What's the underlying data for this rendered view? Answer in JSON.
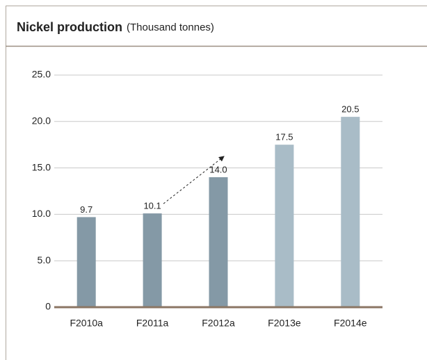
{
  "chart_data": {
    "type": "bar",
    "title": "Nickel production",
    "subtitle": "(Thousand tonnes)",
    "categories": [
      "F2010a",
      "F2011a",
      "F2012a",
      "F2013e",
      "F2014e"
    ],
    "values": [
      9.7,
      10.1,
      14.0,
      17.5,
      20.5
    ],
    "value_labels": [
      "9.7",
      "10.1",
      "14.0",
      "17.5",
      "20.5"
    ],
    "colors": [
      "#8499a6",
      "#8499a6",
      "#8499a6",
      "#a9bcc7",
      "#a9bcc7"
    ],
    "ylim": [
      0,
      25
    ],
    "yticks": [
      0,
      {
        "value": 5,
        "label": "5.0"
      },
      {
        "value": 10,
        "label": "10.0"
      },
      {
        "value": 15,
        "label": "15.0"
      },
      {
        "value": 20,
        "label": "20.0"
      },
      {
        "value": 25,
        "label": "25.0"
      }
    ],
    "grid": true
  }
}
